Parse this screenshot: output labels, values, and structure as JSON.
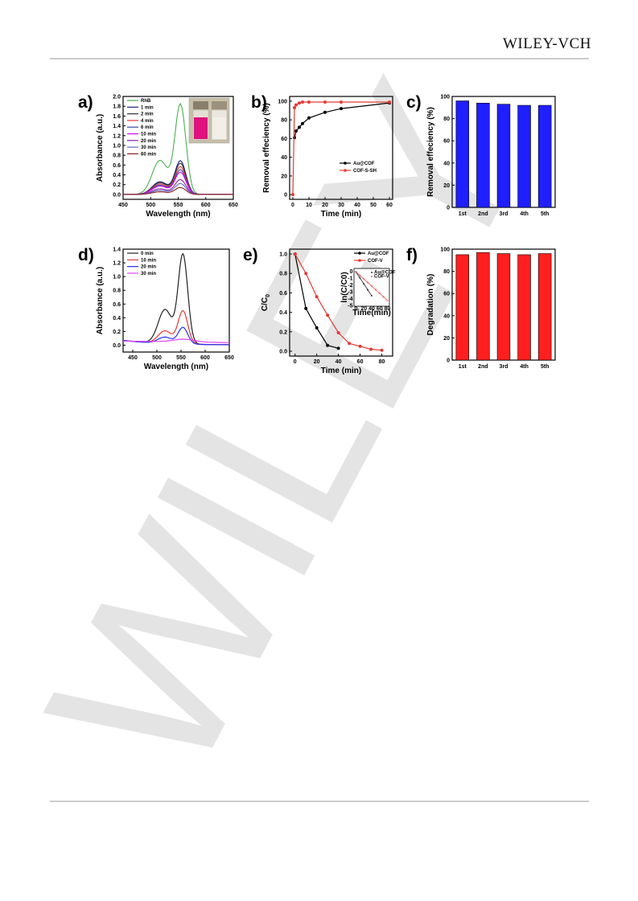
{
  "header": {
    "brand": "WILEY-VCH"
  },
  "watermark": {
    "text": "WILEY"
  },
  "chart_data": [
    {
      "panel": "a)",
      "type": "line",
      "xlabel": "Wavelength (nm)",
      "ylabel": "Absorbance (a.u.)",
      "xlim": [
        450,
        650
      ],
      "ylim": [
        -0.1,
        2.0
      ],
      "xticks": [
        450,
        500,
        550,
        600,
        650
      ],
      "yticks": [
        0.0,
        0.2,
        0.4,
        0.6,
        0.8,
        1.0,
        1.2,
        1.4,
        1.6,
        1.8,
        2.0
      ],
      "legend_position": "top-left",
      "inset_photo": true,
      "series": [
        {
          "name": "RhB",
          "color": "#4caf50",
          "peak": 1.83
        },
        {
          "name": "1 min",
          "color": "#1a237e",
          "peak": 0.68
        },
        {
          "name": "2 min",
          "color": "#333333",
          "peak": 0.63
        },
        {
          "name": "4 min",
          "color": "#e53935",
          "peak": 0.56
        },
        {
          "name": "6 min",
          "color": "#3949ab",
          "peak": 0.5
        },
        {
          "name": "10 min",
          "color": "#d500f9",
          "peak": 0.45
        },
        {
          "name": "20 min",
          "color": "#8e24aa",
          "peak": 0.3
        },
        {
          "name": "30 min",
          "color": "#5c6bc0",
          "peak": 0.22
        },
        {
          "name": "60 min",
          "color": "#8d1f1f",
          "peak": 0.14
        }
      ]
    },
    {
      "panel": "b)",
      "type": "line",
      "xlabel": "Time (min)",
      "ylabel": "Removal effeciency (%)",
      "xlim": [
        -2,
        62
      ],
      "ylim": [
        -5,
        105
      ],
      "xticks": [
        0,
        10,
        20,
        30,
        40,
        50,
        60
      ],
      "yticks": [
        0,
        20,
        40,
        60,
        80,
        100
      ],
      "legend_position": "bottom-right",
      "series": [
        {
          "name": "Au@COF",
          "color": "#000000",
          "x": [
            1,
            2,
            4,
            6,
            10,
            20,
            30,
            60
          ],
          "y": [
            61,
            68,
            72,
            76,
            82,
            88,
            92,
            98
          ]
        },
        {
          "name": "COF-S-SH",
          "color": "#e53935",
          "x": [
            0,
            1,
            2,
            4,
            6,
            10,
            20,
            30,
            60
          ],
          "y": [
            0,
            93,
            96,
            98,
            99,
            99,
            99,
            99,
            99
          ]
        }
      ]
    },
    {
      "panel": "c)",
      "type": "bar",
      "ylabel": "Removal effeciency (%)",
      "ylim": [
        0,
        100
      ],
      "yticks": [
        0,
        20,
        40,
        60,
        80,
        100
      ],
      "color": "#1f1fff",
      "categories": [
        "1st",
        "2nd",
        "3rd",
        "4th",
        "5th"
      ],
      "values": [
        96,
        94,
        93,
        92,
        92
      ]
    },
    {
      "panel": "d)",
      "type": "line",
      "xlabel": "Wavelength (nm)",
      "ylabel": "Absorbance (a.u.)",
      "xlim": [
        430,
        650
      ],
      "ylim": [
        -0.1,
        1.4
      ],
      "xticks": [
        450,
        500,
        550,
        600,
        650
      ],
      "yticks": [
        0.0,
        0.2,
        0.4,
        0.6,
        0.8,
        1.0,
        1.2,
        1.4
      ],
      "legend_position": "top-left",
      "series": [
        {
          "name": "0 min",
          "color": "#222222",
          "peak": 1.3
        },
        {
          "name": "10 min",
          "color": "#e53935",
          "peak": 0.48
        },
        {
          "name": "20 min",
          "color": "#2233ff",
          "peak": 0.24
        },
        {
          "name": "30 min",
          "color": "#e040fb",
          "peak": 0.06
        }
      ]
    },
    {
      "panel": "e)",
      "type": "line",
      "xlabel": "Time (min)",
      "ylabel": "C/C0",
      "xlim": [
        -5,
        90
      ],
      "ylim": [
        -0.05,
        1.05
      ],
      "xticks": [
        0,
        20,
        40,
        60,
        80
      ],
      "yticks": [
        0.0,
        0.2,
        0.4,
        0.6,
        0.8,
        1.0
      ],
      "legend_position": "top-right",
      "series": [
        {
          "name": "Au@COF",
          "color": "#000000",
          "x": [
            0,
            10,
            20,
            30,
            40
          ],
          "y": [
            1.0,
            0.44,
            0.24,
            0.06,
            0.03
          ]
        },
        {
          "name": "COF-V",
          "color": "#e53935",
          "x": [
            0,
            10,
            20,
            30,
            40,
            50,
            60,
            70,
            80
          ],
          "y": [
            1.0,
            0.8,
            0.56,
            0.37,
            0.19,
            0.08,
            0.05,
            0.02,
            0.01
          ]
        }
      ],
      "inset": {
        "xlabel": "Time(min)",
        "ylabel": "ln(C/C0)",
        "xticks": [
          0,
          20,
          40,
          60,
          80
        ],
        "yticks": [
          0,
          -1,
          -2,
          -3,
          -4,
          -5
        ],
        "legend": [
          "Au@COF",
          "COF-V"
        ]
      }
    },
    {
      "panel": "f)",
      "type": "bar",
      "ylabel": "Degradation (%)",
      "ylim": [
        0,
        100
      ],
      "yticks": [
        0,
        20,
        40,
        60,
        80,
        100
      ],
      "color": "#ff1f1f",
      "categories": [
        "1st",
        "2nd",
        "3rd",
        "4th",
        "5th"
      ],
      "values": [
        95,
        97,
        96,
        95,
        96
      ]
    }
  ]
}
